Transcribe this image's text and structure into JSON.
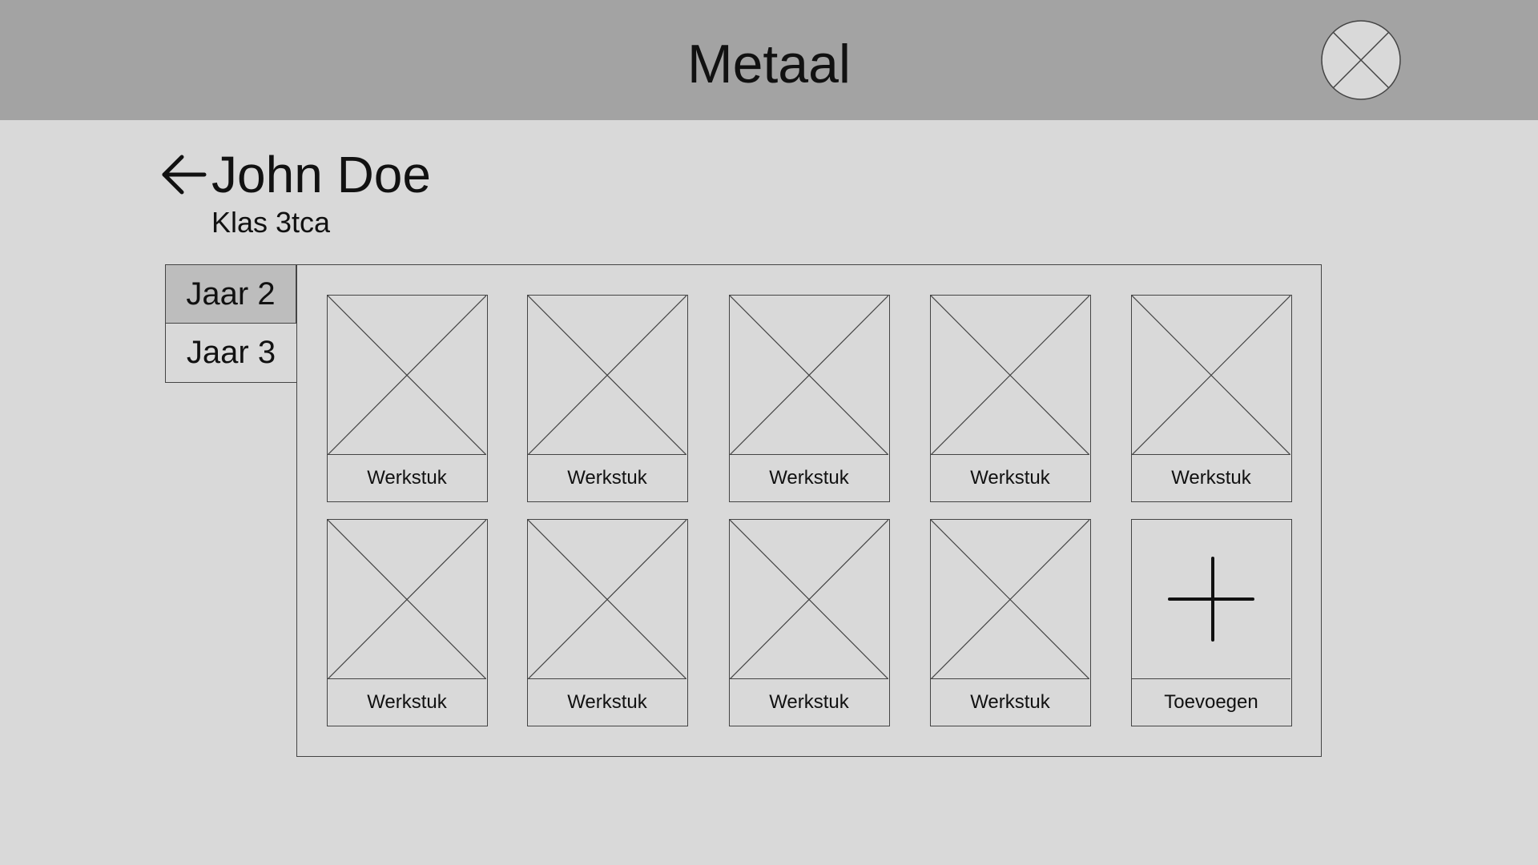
{
  "header": {
    "title": "Metaal",
    "close_icon": "close-x-circle-icon"
  },
  "student": {
    "back_icon": "arrow-left-icon",
    "name": "John Doe",
    "class": "Klas 3tca"
  },
  "tabs": [
    {
      "label": "Jaar 2",
      "active": true
    },
    {
      "label": "Jaar 3",
      "active": false
    }
  ],
  "grid": {
    "items": [
      {
        "label": "Werkstuk",
        "icon": "image-placeholder-icon"
      },
      {
        "label": "Werkstuk",
        "icon": "image-placeholder-icon"
      },
      {
        "label": "Werkstuk",
        "icon": "image-placeholder-icon"
      },
      {
        "label": "Werkstuk",
        "icon": "image-placeholder-icon"
      },
      {
        "label": "Werkstuk",
        "icon": "image-placeholder-icon"
      },
      {
        "label": "Werkstuk",
        "icon": "image-placeholder-icon"
      },
      {
        "label": "Werkstuk",
        "icon": "image-placeholder-icon"
      },
      {
        "label": "Werkstuk",
        "icon": "image-placeholder-icon"
      },
      {
        "label": "Werkstuk",
        "icon": "image-placeholder-icon"
      }
    ],
    "add_item": {
      "label": "Toevoegen",
      "icon": "plus-icon"
    }
  },
  "colors": {
    "header_bg": "#a3a3a3",
    "page_bg": "#d9d9d9",
    "active_tab_bg": "#bdbdbd",
    "stroke": "#444444"
  }
}
